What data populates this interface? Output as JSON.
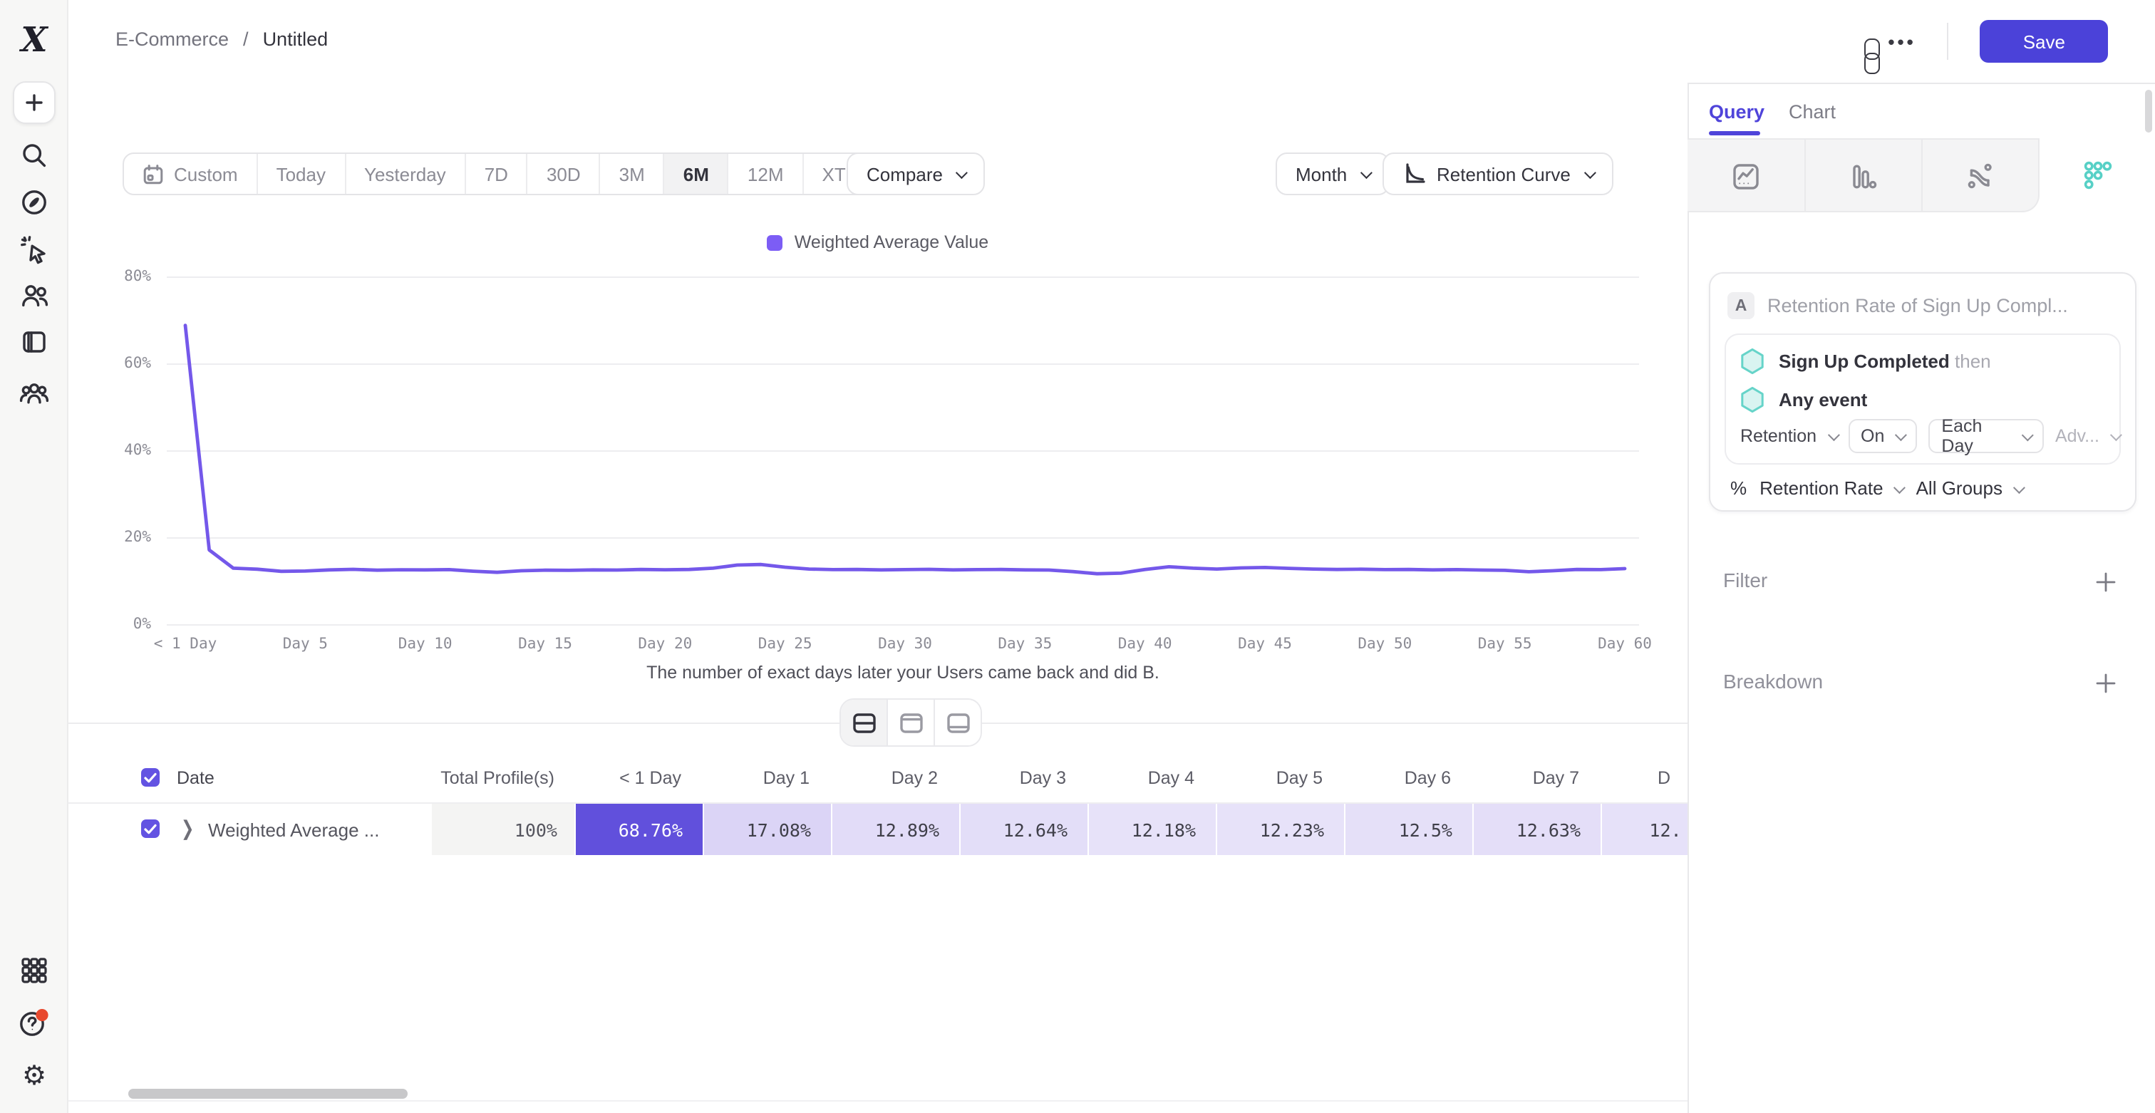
{
  "topbar": {
    "breadcrumb": {
      "workspace": "E-Commerce",
      "separator": "/",
      "page": "Untitled"
    },
    "more_label": "•••",
    "save_label": "Save"
  },
  "sidebar": {
    "icons": [
      "mixpanel-logo",
      "create",
      "search",
      "explore",
      "events",
      "users",
      "boards",
      "cohorts"
    ],
    "bottom_icons": [
      "apps",
      "help",
      "settings"
    ]
  },
  "toolbar": {
    "ranges": [
      "Custom",
      "Today",
      "Yesterday",
      "7D",
      "30D",
      "3M",
      "6M",
      "12M",
      "XTD"
    ],
    "selected_range": "6M",
    "compare_label": "Compare",
    "granularity": "Month",
    "view_label": "Retention Curve"
  },
  "chart": {
    "legend": "Weighted Average Value",
    "caption": "The number of exact days later your Users came back and did B.",
    "y_ticks": [
      "80%",
      "60%",
      "40%",
      "20%",
      "0%"
    ]
  },
  "chart_data": {
    "type": "line",
    "series_name": "Weighted Average Value",
    "x_unit": "days since first event (0–60)",
    "x_tick_labels": [
      "< 1 Day",
      "Day 5",
      "Day 10",
      "Day 15",
      "Day 20",
      "Day 25",
      "Day 30",
      "Day 35",
      "Day 40",
      "Day 45",
      "Day 50",
      "Day 55",
      "Day 60"
    ],
    "values": [
      68.76,
      17.08,
      12.89,
      12.64,
      12.18,
      12.23,
      12.5,
      12.63,
      12.42,
      12.51,
      12.48,
      12.55,
      12.2,
      11.95,
      12.3,
      12.42,
      12.38,
      12.5,
      12.46,
      12.6,
      12.52,
      12.58,
      12.9,
      13.6,
      13.75,
      13.1,
      12.7,
      12.55,
      12.6,
      12.5,
      12.56,
      12.62,
      12.48,
      12.55,
      12.6,
      12.5,
      12.45,
      12.1,
      11.6,
      11.75,
      12.6,
      13.2,
      12.9,
      12.7,
      12.95,
      13.05,
      12.85,
      12.7,
      12.6,
      12.65,
      12.55,
      12.6,
      12.5,
      12.55,
      12.45,
      12.4,
      12.05,
      12.3,
      12.6,
      12.55,
      12.8
    ],
    "ylim": [
      0,
      80
    ],
    "grid": "horizontal",
    "legend_position": "top-center",
    "line_color": "#7458ea"
  },
  "table": {
    "name_header": "Date",
    "total_header": "Total Profile(s)",
    "day_headers": [
      "< 1 Day",
      "Day 1",
      "Day 2",
      "Day 3",
      "Day 4",
      "Day 5",
      "Day 6",
      "Day 7",
      "D"
    ],
    "row": {
      "label": "Weighted Average ...",
      "total": "100%",
      "cells": [
        {
          "v": "68.76%",
          "bg": "#6150dc",
          "fg": "#ffffff"
        },
        {
          "v": "17.08%",
          "bg": "#dbd4f6",
          "fg": "#3f3f49"
        },
        {
          "v": "12.89%",
          "bg": "#e2dcf8",
          "fg": "#3f3f49"
        },
        {
          "v": "12.64%",
          "bg": "#e3def8",
          "fg": "#3f3f49"
        },
        {
          "v": "12.18%",
          "bg": "#e7e2f9",
          "fg": "#3f3f49"
        },
        {
          "v": "12.23%",
          "bg": "#e7e2f9",
          "fg": "#3f3f49"
        },
        {
          "v": "12.5%",
          "bg": "#e5e0f8",
          "fg": "#3f3f49"
        },
        {
          "v": "12.63%",
          "bg": "#e4def8",
          "fg": "#3f3f49"
        },
        {
          "v": "12.",
          "bg": "#e6e1f9",
          "fg": "#3f3f49",
          "partial": true
        }
      ]
    }
  },
  "panel": {
    "tabs": {
      "query": "Query",
      "chart": "Chart"
    },
    "active_tab": "Query",
    "report_types": [
      "insights",
      "funnels",
      "flows",
      "retention"
    ],
    "selected_report": "retention",
    "query": {
      "step_letter": "A",
      "title": "Retention Rate of Sign Up Compl...",
      "first_event": "Sign Up Completed",
      "then_label": "then",
      "return_event": "Any event",
      "mode": "Retention",
      "on_label": "On",
      "interval": "Each Day",
      "advanced": "Adv...",
      "metric_symbol": "%",
      "metric": "Retention Rate",
      "groups": "All Groups"
    },
    "sections": {
      "filter": "Filter",
      "breakdown": "Breakdown"
    }
  }
}
